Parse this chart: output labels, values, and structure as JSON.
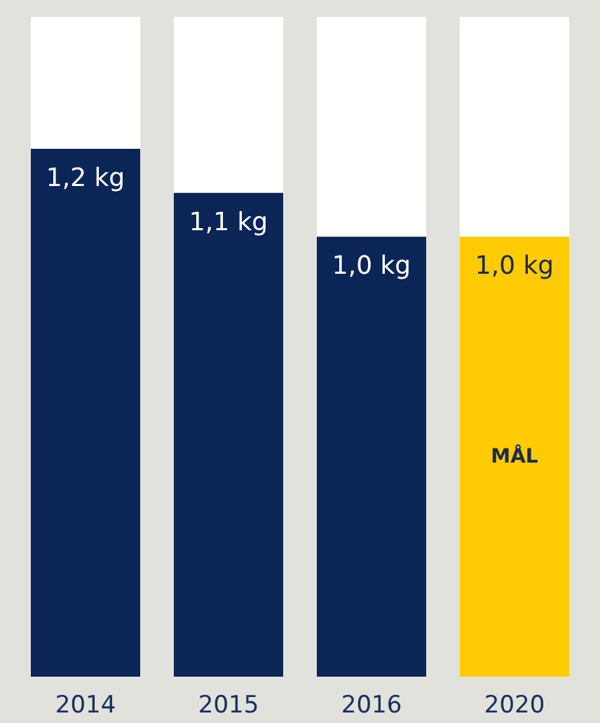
{
  "chart_data": {
    "type": "bar",
    "categories": [
      "2014",
      "2015",
      "2016",
      "2020"
    ],
    "values": [
      1.2,
      1.1,
      1.0,
      1.0
    ],
    "colors": [
      "#0c2557",
      "#0c2557",
      "#0c2557",
      "#ffcb05"
    ],
    "value_labels": [
      "1,2 kg",
      "1,1 kg",
      "1,0 kg",
      "1,0 kg"
    ],
    "ylim": [
      0,
      1.5
    ],
    "tick_labels": "x",
    "grid": false,
    "annotations": [
      "MÅL"
    ]
  }
}
